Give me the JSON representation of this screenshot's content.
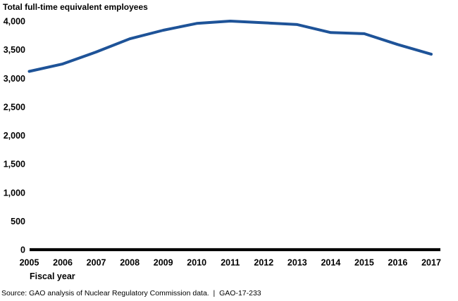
{
  "page": {
    "title": "Total full-time equivalent employees",
    "source_note": "Source: GAO analysis of Nuclear Regulatory Commission data.  |  GAO-17-233"
  },
  "colors": {
    "line": "#1e5398",
    "axis": "#000000",
    "text": "#000000"
  },
  "chart_data": {
    "type": "line",
    "title": "Total full-time equivalent employees",
    "xlabel": "Fiscal year",
    "ylabel": "",
    "categories": [
      2005,
      2006,
      2007,
      2008,
      2009,
      2010,
      2011,
      2012,
      2013,
      2014,
      2015,
      2016,
      2017
    ],
    "series": [
      {
        "name": "Total full-time equivalent employees",
        "values": [
          3120,
          3250,
          3460,
          3690,
          3840,
          3960,
          4000,
          3970,
          3940,
          3800,
          3780,
          3590,
          3420
        ],
        "color": "#1e5398"
      }
    ],
    "ylim": [
      0,
      4000
    ],
    "ytick_step": 500,
    "grid": false,
    "legend": "none",
    "x_axis_line": true,
    "y_axis_line": false
  }
}
